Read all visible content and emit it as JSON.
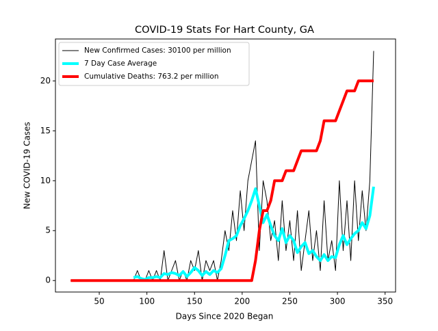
{
  "chart_data": {
    "type": "line",
    "title": "COVID-19 Stats For Hart County, GA",
    "x_label": "Days Since 2020 Began",
    "y_label": "New COVID-19 Cases",
    "x": [
      20,
      86,
      90,
      94,
      98,
      102,
      106,
      110,
      114,
      118,
      122,
      126,
      130,
      134,
      138,
      142,
      146,
      150,
      154,
      158,
      162,
      166,
      170,
      174,
      178,
      182,
      186,
      190,
      194,
      198,
      202,
      206,
      210,
      214,
      218,
      222,
      226,
      230,
      234,
      238,
      242,
      246,
      250,
      254,
      258,
      262,
      266,
      270,
      274,
      278,
      282,
      286,
      290,
      294,
      298,
      302,
      306,
      310,
      314,
      318,
      322,
      326,
      330,
      334,
      338
    ],
    "series": [
      {
        "name": "New Confirmed Cases: 30100 per million",
        "color": "#000000",
        "width": 1,
        "values": [
          0,
          0,
          1,
          0,
          0,
          1,
          0,
          1,
          0,
          3,
          0,
          1,
          2,
          0,
          1,
          0,
          2,
          1,
          3,
          0,
          2,
          1,
          2,
          0,
          2,
          5,
          3,
          7,
          4,
          9,
          5,
          10,
          12,
          14,
          3,
          10,
          8,
          4,
          6,
          2,
          8,
          3,
          6,
          2,
          7,
          1,
          4,
          7,
          2,
          5,
          1,
          8,
          2,
          4,
          1,
          10,
          3,
          8,
          2,
          10,
          4,
          9,
          5,
          10,
          23
        ]
      },
      {
        "name": "7 Day Case Average",
        "color": "#00ffff",
        "width": 4,
        "values": [
          null,
          0.3,
          0.4,
          0.2,
          0.1,
          0.3,
          0.3,
          0.4,
          0.3,
          0.7,
          0.6,
          0.8,
          0.7,
          0.5,
          0.9,
          0.4,
          0.8,
          1.3,
          1.0,
          0.5,
          0.9,
          0.6,
          1.0,
          0.8,
          1.2,
          2.5,
          4.0,
          4.2,
          4.5,
          5.5,
          6.2,
          7.0,
          8.0,
          9.2,
          7.5,
          5.8,
          6.6,
          5.5,
          4.5,
          4.0,
          5.2,
          3.8,
          4.5,
          4.0,
          2.8,
          3.4,
          3.8,
          2.7,
          3.0,
          2.4,
          2.0,
          2.6,
          2.0,
          2.4,
          2.3,
          3.6,
          4.5,
          3.6,
          4.2,
          4.7,
          5.0,
          5.8,
          5.2,
          6.5,
          9.4
        ]
      },
      {
        "name": "Cumulative Deaths: 763.2 per million",
        "color": "#ff0000",
        "width": 4,
        "values": [
          0,
          0,
          0,
          0,
          0,
          0,
          0,
          0,
          0,
          0,
          0,
          0,
          0,
          0,
          0,
          0,
          0,
          0,
          0,
          0,
          0,
          0,
          0,
          0,
          0,
          0,
          0,
          0,
          0,
          0,
          0,
          0,
          0,
          2,
          5,
          7,
          7,
          8,
          10,
          10,
          10,
          11,
          11,
          11,
          12,
          13,
          13,
          13,
          13,
          13,
          14,
          16,
          16,
          16,
          16,
          17,
          18,
          19,
          19,
          19,
          20,
          20,
          20,
          20,
          20
        ]
      }
    ],
    "xlim": [
      4,
      361
    ],
    "ylim": [
      -1.15,
      24.2
    ],
    "xticks": [
      50,
      100,
      150,
      200,
      250,
      300,
      350
    ],
    "yticks": [
      0,
      5,
      10,
      15,
      20
    ],
    "legend": "upper left"
  }
}
